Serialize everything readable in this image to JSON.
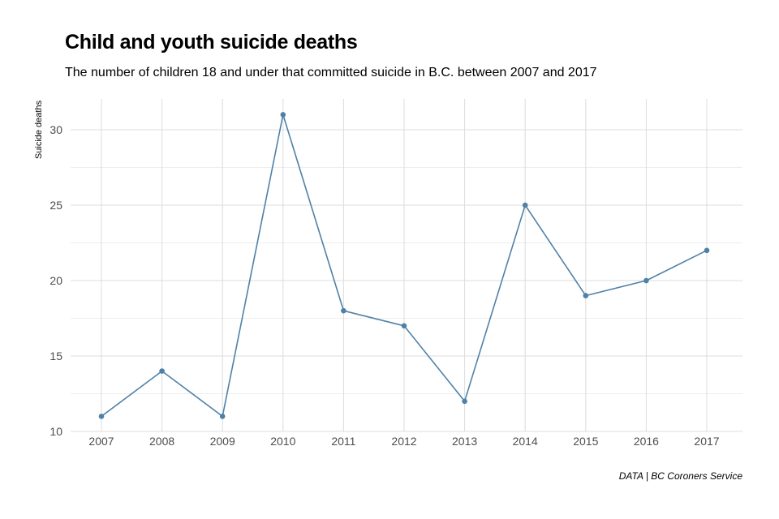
{
  "colors": {
    "line": "#4f81a8",
    "point": "#4f81a8",
    "grid": "#dcdcdc",
    "background": "#ffffff"
  },
  "chart_data": {
    "type": "line",
    "title": "Child and youth suicide deaths",
    "subtitle": "The number of children 18 and under that committed suicide in B.C. between 2007 and 2017",
    "caption": "DATA | BC Coroners Service",
    "xlabel": "",
    "ylabel": "Suicide deaths",
    "x": [
      "2007",
      "2008",
      "2009",
      "2010",
      "2011",
      "2012",
      "2013",
      "2014",
      "2015",
      "2016",
      "2017"
    ],
    "series": [
      {
        "values": [
          11,
          14,
          11,
          31,
          18,
          17,
          12,
          25,
          19,
          20,
          22
        ]
      }
    ],
    "ylim": [
      10,
      32
    ],
    "yticks": [
      10,
      15,
      20,
      25,
      30
    ],
    "grid": true,
    "legend": "none"
  }
}
